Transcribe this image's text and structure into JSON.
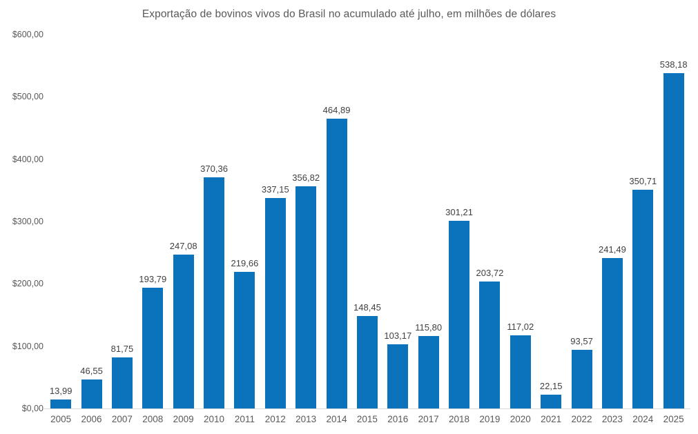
{
  "chart_data": {
    "type": "bar",
    "title": "Exportação de bovinos vivos do Brasil no acumulado até julho, em milhões de dólares",
    "categories": [
      "2005",
      "2006",
      "2007",
      "2008",
      "2009",
      "2010",
      "2011",
      "2012",
      "2013",
      "2014",
      "2015",
      "2016",
      "2017",
      "2018",
      "2019",
      "2020",
      "2021",
      "2022",
      "2023",
      "2024",
      "2025"
    ],
    "values": [
      13.99,
      46.55,
      81.75,
      193.79,
      247.08,
      370.36,
      219.66,
      337.15,
      356.82,
      464.89,
      148.45,
      103.17,
      115.8,
      301.21,
      203.72,
      117.02,
      22.15,
      93.57,
      241.49,
      350.71,
      538.18
    ],
    "value_labels": [
      "13,99",
      "46,55",
      "81,75",
      "193,79",
      "247,08",
      "370,36",
      "219,66",
      "337,15",
      "356,82",
      "464,89",
      "148,45",
      "103,17",
      "115,80",
      "301,21",
      "203,72",
      "117,02",
      "22,15",
      "93,57",
      "241,49",
      "350,71",
      "538,18"
    ],
    "xlabel": "",
    "ylabel": "",
    "ylim": [
      0,
      600
    ],
    "y_ticks": [
      {
        "value": 600,
        "label": "$600,00"
      },
      {
        "value": 500,
        "label": "$500,00"
      },
      {
        "value": 400,
        "label": "$400,00"
      },
      {
        "value": 300,
        "label": "$300,00"
      },
      {
        "value": 200,
        "label": "$200,00"
      },
      {
        "value": 100,
        "label": "$100,00"
      },
      {
        "value": 0,
        "label": "$0,00"
      }
    ],
    "grid": false,
    "legend": null,
    "colors": {
      "bar": "#0b72bc",
      "title": "#595959",
      "value_label": "#404040",
      "axis_label": "#595959",
      "axis_line": "#d9d9d9"
    }
  }
}
